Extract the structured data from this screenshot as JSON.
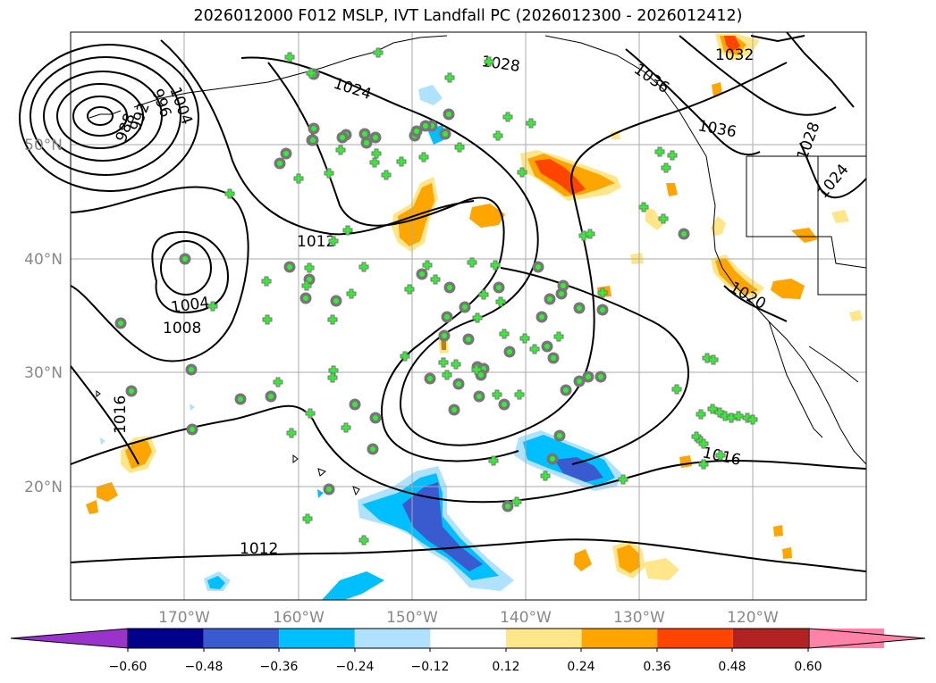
{
  "title": "2026012000 F012 MSLP, IVT Landfall PC (2026012300 - 2026012412)",
  "axes": {
    "lon_ticks": [
      "170°W",
      "160°W",
      "150°W",
      "140°W",
      "130°W",
      "120°W"
    ],
    "lat_ticks": [
      "50°N",
      "40°N",
      "30°N",
      "20°N"
    ]
  },
  "isobar_labels": [
    "1004",
    "1008",
    "1012",
    "1016",
    "1016",
    "1020",
    "1024",
    "1024",
    "1028",
    "1028",
    "1032",
    "1036",
    "1036",
    "1004",
    "988",
    "992",
    "996",
    "1012"
  ],
  "colorbar": {
    "ticks": [
      "−0.60",
      "−0.48",
      "−0.36",
      "−0.24",
      "−0.12",
      "0.12",
      "0.24",
      "0.36",
      "0.48",
      "0.60"
    ],
    "colors": {
      "under": "#9933cc",
      "bins": [
        "#00008b",
        "#3a5bd0",
        "#00bfff",
        "#b0e2ff",
        "#ffffff",
        "#ffe68a",
        "#ffa500",
        "#ff4500",
        "#b22222",
        "#ff82a8"
      ],
      "over": "#ff82a8"
    }
  },
  "legend_colors": {
    "marker_fill": "#33ee33",
    "marker_edge": "#777777",
    "land_line": "#000000",
    "grid": "#aaaaaa"
  }
}
